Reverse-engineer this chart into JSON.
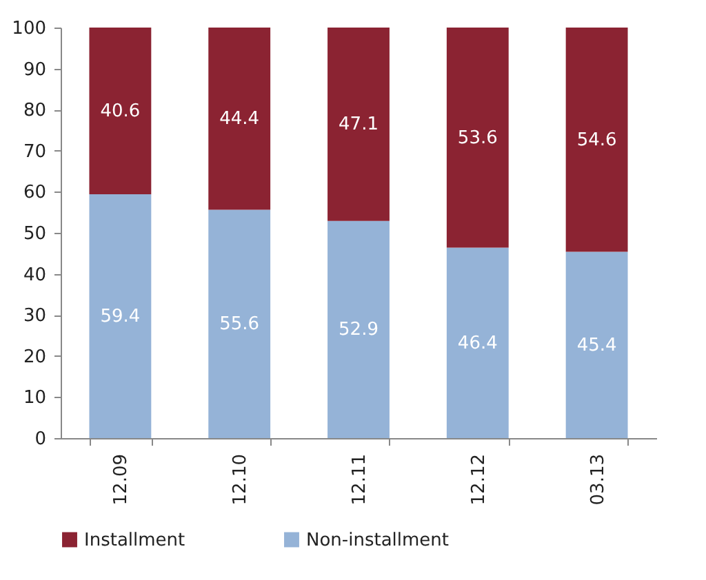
{
  "chart_data": {
    "type": "bar",
    "stacked": true,
    "categories": [
      "12.09",
      "12.10",
      "12.11",
      "12.12",
      "03.13"
    ],
    "series": [
      {
        "name": "Non-installment",
        "color": "#95b3d7",
        "values": [
          59.4,
          55.6,
          52.9,
          46.4,
          45.4
        ]
      },
      {
        "name": "Installment",
        "color": "#8b2332",
        "values": [
          40.6,
          44.4,
          47.1,
          53.6,
          54.6
        ]
      }
    ],
    "ylim": [
      0,
      100
    ],
    "yticks": [
      0,
      10,
      20,
      30,
      40,
      50,
      60,
      70,
      80,
      90,
      100
    ],
    "grid": false,
    "legend": "bottom",
    "data_labels": true
  }
}
